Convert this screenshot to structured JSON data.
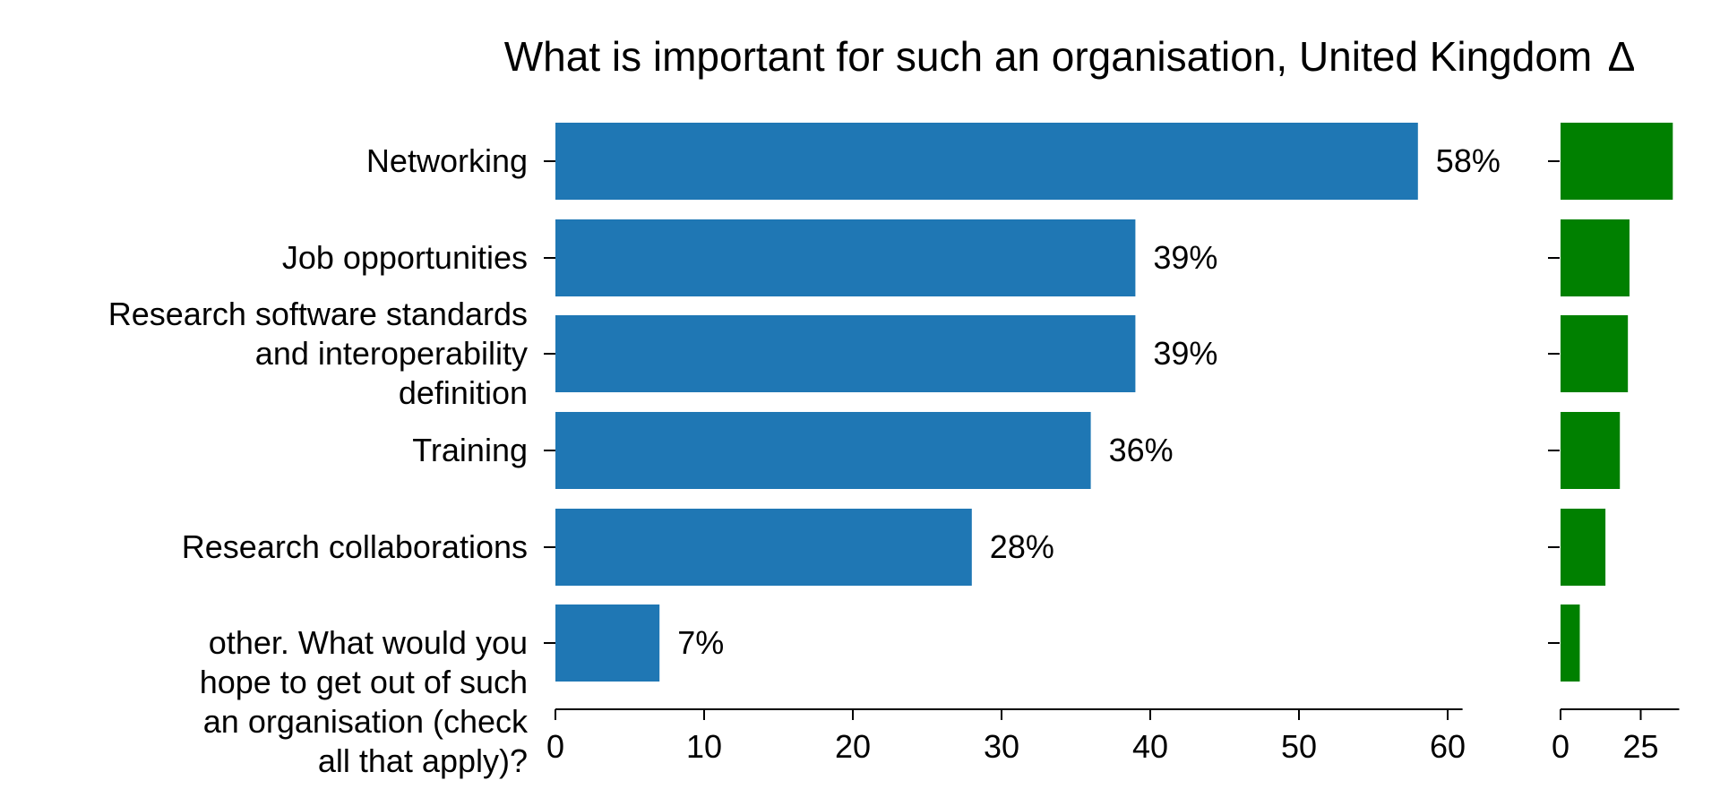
{
  "chart_data": [
    {
      "type": "bar",
      "orientation": "horizontal",
      "title": "What is important for such an organisation, United Kingdom",
      "categories": [
        "Networking",
        "Job opportunities",
        "Research software standards and interoperability definition",
        "Training",
        "Research collaborations",
        "other. What would you hope to get out of such an organisation (check all that apply)?"
      ],
      "values": [
        58,
        39,
        39,
        36,
        28,
        7
      ],
      "value_labels": [
        "58%",
        "39%",
        "39%",
        "36%",
        "28%",
        "7%"
      ],
      "xlim": [
        0,
        61
      ],
      "xticks": [
        0,
        10,
        20,
        30,
        40,
        50,
        60
      ],
      "xlabel": "",
      "ylabel": "",
      "grid": false,
      "bar_color": "#1f77b4"
    },
    {
      "type": "bar",
      "orientation": "horizontal",
      "title": "Δ",
      "categories": [
        "Networking",
        "Job opportunities",
        "Research software standards and interoperability definition",
        "Training",
        "Research collaborations",
        "other. What would you hope to get out of such an organisation (check all that apply)?"
      ],
      "values": [
        35,
        21.5,
        21,
        18.5,
        14,
        6
      ],
      "xlim": [
        0,
        37
      ],
      "xticks": [
        0,
        25
      ],
      "grid": false,
      "bar_color": "#008000"
    }
  ],
  "labels": {
    "title": "What is important for such an organisation, United Kingdom",
    "delta_title": "Δ",
    "category_lines": [
      [
        "Networking"
      ],
      [
        "Job opportunities"
      ],
      [
        "Research software standards",
        "and interoperability",
        "definition"
      ],
      [
        "Training"
      ],
      [
        "Research collaborations"
      ],
      [
        "other. What would you",
        "hope to get out of such",
        "an organisation (check",
        "all that apply)?"
      ]
    ]
  }
}
